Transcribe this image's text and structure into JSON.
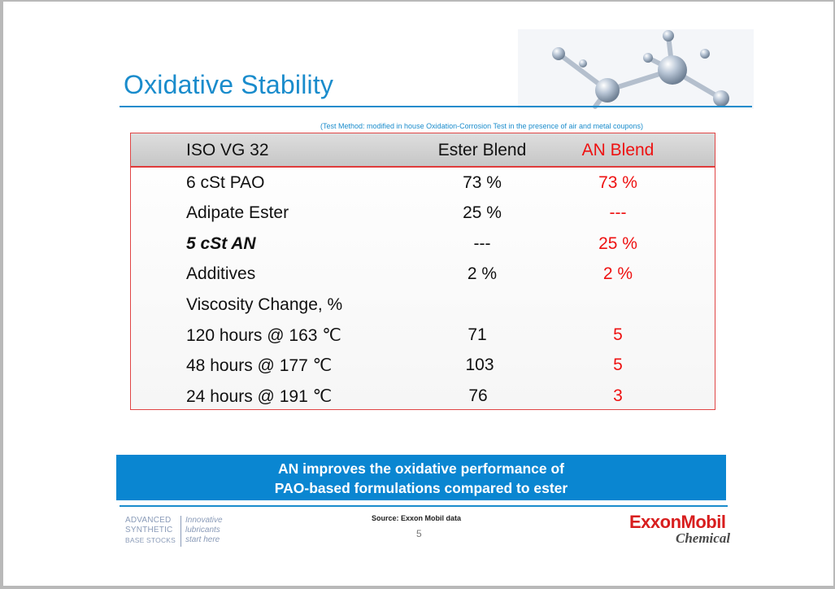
{
  "title": "Oxidative Stability",
  "test_method": "(Test Method: modified in house Oxidation-Corrosion Test in the presence of air and metal coupons)",
  "table": {
    "headers": [
      "ISO VG 32",
      "Ester Blend",
      "AN Blend"
    ],
    "rows": [
      {
        "label": "6 cSt PAO",
        "ester": "73 %",
        "an": "73 %"
      },
      {
        "label": "Adipate Ester",
        "ester": "25 %",
        "an": "---"
      },
      {
        "label": "5 cSt AN",
        "ester": "---",
        "an": "25 %"
      },
      {
        "label": "Additives",
        "ester": "2 %",
        "an": "2 %"
      },
      {
        "label": "Viscosity Change, %",
        "ester": "",
        "an": ""
      },
      {
        "label": "120 hours @ 163 ℃",
        "ester": "71",
        "an": "5"
      },
      {
        "label": "48 hours @ 177 ℃",
        "ester": "103",
        "an": "5"
      },
      {
        "label": "24 hours @ 191 ℃",
        "ester": "76",
        "an": "3"
      }
    ]
  },
  "banner": {
    "line1": "AN improves the oxidative performance of",
    "line2": "PAO-based formulations compared to ester"
  },
  "footer": {
    "source": "Source: Exxon Mobil data",
    "page_number": "5",
    "asbs": {
      "l1": "ADVANCED",
      "l2": "SYNTHETIC",
      "l3": "BASE STOCKS",
      "r1": "Innovative",
      "r2": "lubricants",
      "r3": "start here"
    },
    "brand": "ExxonMobil",
    "brand_sub": "Chemical"
  },
  "colors": {
    "title_blue": "#1a8ccc",
    "banner_blue": "#0a86d1",
    "accent_red": "#ee1111"
  }
}
